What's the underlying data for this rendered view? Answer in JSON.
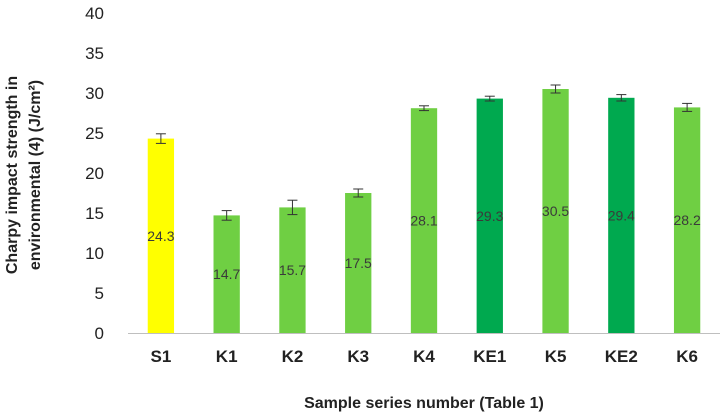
{
  "chart_data": {
    "type": "bar",
    "categories": [
      "S1",
      "K1",
      "K2",
      "K3",
      "K4",
      "KE1",
      "K5",
      "KE2",
      "K6"
    ],
    "values": [
      24.3,
      14.7,
      15.7,
      17.5,
      28.1,
      29.3,
      30.5,
      29.4,
      28.2
    ],
    "error": [
      0.6,
      0.6,
      0.9,
      0.5,
      0.3,
      0.3,
      0.5,
      0.4,
      0.5
    ],
    "data_labels": [
      "24.3",
      "14.7",
      "15.7",
      "17.5",
      "28.1",
      "29.3",
      "30.5",
      "29.4",
      "28.2"
    ],
    "bar_colors": [
      "#ffff00",
      "#6fcf43",
      "#6fcf43",
      "#6fcf43",
      "#6fcf43",
      "#00a94f",
      "#6fcf43",
      "#00a94f",
      "#6fcf43"
    ],
    "xlabel": "Sample series  number (Table 1)",
    "ylabel": "Charpy impact strength in environmental (4) (J/cm²)",
    "ylabel_lines": [
      "Charpy impact strength in",
      "environmental (4) (J/cm²)"
    ],
    "ylim": [
      0,
      40
    ],
    "yticks": [
      0,
      5,
      10,
      15,
      20,
      25,
      30,
      35,
      40
    ],
    "grid": false,
    "legend": "none"
  }
}
